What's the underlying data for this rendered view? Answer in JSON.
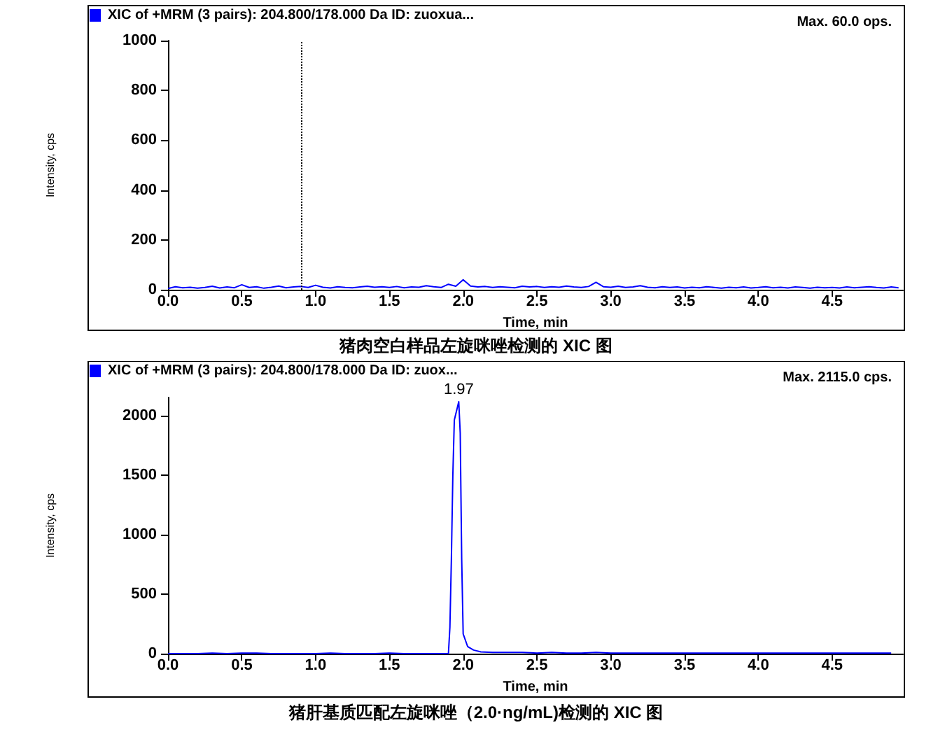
{
  "chart_data": [
    {
      "type": "line",
      "title": "Max. 60.0 ops.",
      "xlabel": "Time, min",
      "ylabel": "Intensity, cps",
      "legend": "top left",
      "grid": false,
      "annotations": [
        "猪肉空白样品左旋咪唑检测的 XIC 图"
      ],
      "xlim": [
        0,
        4.98
      ],
      "xticks": [
        {
          "value": 0,
          "label": "0.0"
        },
        {
          "value": 0.5,
          "label": "0.5"
        },
        {
          "value": 1,
          "label": "1.0"
        },
        {
          "value": 1.5,
          "label": "1.5"
        },
        {
          "value": 2,
          "label": "2.0"
        },
        {
          "value": 2.5,
          "label": "2.5"
        },
        {
          "value": 3,
          "label": "3.0"
        },
        {
          "value": 3.5,
          "label": "3.5"
        },
        {
          "value": 4,
          "label": "4.0"
        },
        {
          "value": 4.5,
          "label": "4.5"
        }
      ],
      "ylim": [
        0,
        1000
      ],
      "yticks": [
        0,
        200,
        400,
        600,
        800,
        1000
      ],
      "ref_lines": [
        {
          "axis": "x",
          "value": 0.9,
          "color": "#000000",
          "line_style": "dotted"
        }
      ],
      "series": [
        {
          "name": "XIC of +MRM (3 pairs): 204.800/178.000 Da ID: zuoxua...",
          "color": "#0000ff",
          "x": [
            0,
            0.05,
            0.1,
            0.15,
            0.2,
            0.25,
            0.3,
            0.35,
            0.4,
            0.45,
            0.5,
            0.55,
            0.6,
            0.65,
            0.7,
            0.75,
            0.8,
            0.85,
            0.9,
            0.95,
            1,
            1.05,
            1.1,
            1.15,
            1.2,
            1.25,
            1.3,
            1.35,
            1.4,
            1.45,
            1.5,
            1.55,
            1.6,
            1.65,
            1.7,
            1.75,
            1.8,
            1.85,
            1.9,
            1.95,
            2,
            2.05,
            2.1,
            2.15,
            2.2,
            2.25,
            2.3,
            2.35,
            2.4,
            2.45,
            2.5,
            2.55,
            2.6,
            2.65,
            2.7,
            2.75,
            2.8,
            2.85,
            2.9,
            2.95,
            3,
            3.05,
            3.1,
            3.15,
            3.2,
            3.25,
            3.3,
            3.35,
            3.4,
            3.45,
            3.5,
            3.55,
            3.6,
            3.65,
            3.7,
            3.75,
            3.8,
            3.85,
            3.9,
            3.95,
            4,
            4.05,
            4.1,
            4.15,
            4.2,
            4.25,
            4.3,
            4.35,
            4.4,
            4.45,
            4.5,
            4.55,
            4.6,
            4.65,
            4.7,
            4.75,
            4.8,
            4.85,
            4.9,
            4.95
          ],
          "values": [
            5,
            12,
            8,
            10,
            6,
            9,
            14,
            7,
            11,
            8,
            20,
            9,
            12,
            6,
            10,
            15,
            8,
            11,
            13,
            9,
            18,
            10,
            7,
            12,
            9,
            8,
            11,
            14,
            10,
            12,
            9,
            13,
            8,
            11,
            10,
            16,
            12,
            9,
            22,
            14,
            40,
            15,
            11,
            13,
            9,
            12,
            10,
            8,
            14,
            11,
            13,
            9,
            12,
            10,
            15,
            11,
            9,
            13,
            30,
            12,
            10,
            14,
            9,
            11,
            16,
            10,
            8,
            12,
            9,
            11,
            7,
            10,
            8,
            12,
            9,
            6,
            10,
            8,
            11,
            7,
            9,
            12,
            8,
            10,
            7,
            11,
            9,
            6,
            10,
            8,
            9,
            7,
            11,
            8,
            10,
            12,
            9,
            7,
            11,
            8
          ]
        }
      ]
    },
    {
      "type": "line",
      "title": "Max. 2115.0 cps.",
      "xlabel": "Time, min",
      "ylabel": "Intensity, cps",
      "legend": "top left",
      "grid": false,
      "annotations": [
        {
          "text": "1.97",
          "x": 1.97,
          "y": 2115
        },
        "猪肝基质匹配左旋咪唑（2.0·ng/mL)检测的 XIC 图"
      ],
      "xlim": [
        0,
        4.98
      ],
      "xticks": [
        {
          "value": 0,
          "label": "0.0"
        },
        {
          "value": 0.5,
          "label": "0.5"
        },
        {
          "value": 1,
          "label": "1.0"
        },
        {
          "value": 1.5,
          "label": "1.5"
        },
        {
          "value": 2,
          "label": "2.0"
        },
        {
          "value": 2.5,
          "label": "2.5"
        },
        {
          "value": 3,
          "label": "3.0"
        },
        {
          "value": 3.5,
          "label": "3.5"
        },
        {
          "value": 4,
          "label": "4.0"
        },
        {
          "value": 4.5,
          "label": "4.5"
        }
      ],
      "ylim": [
        0,
        2150
      ],
      "yticks": [
        0,
        500,
        1000,
        1500,
        2000
      ],
      "series": [
        {
          "name": "XIC of +MRM (3 pairs): 204.800/178.000 Da ID: zuox...",
          "color": "#0000ff",
          "x": [
            0,
            0.1,
            0.2,
            0.3,
            0.4,
            0.5,
            0.6,
            0.7,
            0.8,
            0.9,
            1,
            1.1,
            1.2,
            1.3,
            1.4,
            1.5,
            1.6,
            1.7,
            1.8,
            1.9,
            1.91,
            1.92,
            1.93,
            1.94,
            1.97,
            1.98,
            1.99,
            2,
            2.03,
            2.07,
            2.12,
            2.2,
            2.3,
            2.4,
            2.5,
            2.6,
            2.7,
            2.8,
            2.9,
            3,
            3.1,
            3.2,
            3.3,
            3.4,
            3.5,
            3.6,
            3.7,
            3.8,
            3.9,
            4,
            4.1,
            4.2,
            4.3,
            4.4,
            4.5,
            4.6,
            4.7,
            4.8,
            4.9
          ],
          "values": [
            0,
            0,
            0,
            5,
            0,
            5,
            5,
            0,
            0,
            0,
            0,
            5,
            0,
            0,
            0,
            5,
            0,
            0,
            0,
            0,
            220,
            790,
            1500,
            1960,
            2115,
            1850,
            790,
            165,
            60,
            30,
            15,
            10,
            10,
            10,
            5,
            10,
            5,
            5,
            10,
            5,
            5,
            5,
            5,
            5,
            5,
            5,
            5,
            5,
            5,
            5,
            5,
            5,
            5,
            5,
            5,
            5,
            5,
            5,
            5
          ]
        }
      ]
    }
  ]
}
